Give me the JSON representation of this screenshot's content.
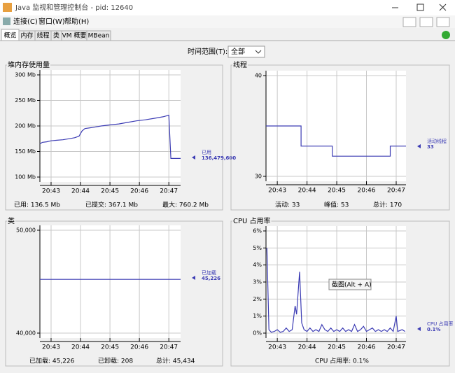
{
  "window": {
    "title": "Java 监视和管理控制台 - pid: 12640"
  },
  "menu": [
    "连接(C)",
    "窗口(W)",
    "帮助(H)"
  ],
  "tabs": [
    "概览",
    "内存",
    "线程",
    "类",
    "VM 概要",
    "MBean"
  ],
  "time_range": {
    "label": "时间范围(T):",
    "value": "全部"
  },
  "tooltip": "截图(Alt + A)",
  "chart_data": [
    {
      "type": "line",
      "title": "堆内存使用量",
      "x": [
        1242.62,
        1242.7,
        1242.85,
        1243.0,
        1243.2,
        1243.4,
        1243.6,
        1243.8,
        1243.95,
        1244.05,
        1244.15,
        1244.4,
        1244.7,
        1245.0,
        1245.3,
        1245.6,
        1245.9,
        1246.2,
        1246.5,
        1246.8,
        1247.0,
        1247.07,
        1247.4
      ],
      "series": [
        {
          "name": "已用",
          "color": "#3c3cb4",
          "legend_value": "136,479,600",
          "values": [
            165,
            168,
            169,
            171,
            172,
            173,
            175,
            177,
            180,
            190,
            195,
            197,
            200,
            202,
            204,
            207,
            210,
            212,
            215,
            218,
            221,
            136.5,
            136.5
          ]
        }
      ],
      "xlim": [
        1242.62,
        1247.4
      ],
      "xticks": [
        {
          "value": 1243,
          "label": "20:43"
        },
        {
          "value": 1244,
          "label": "20:44"
        },
        {
          "value": 1245,
          "label": "20:45"
        },
        {
          "value": 1246,
          "label": "20:46"
        },
        {
          "value": 1247,
          "label": "20:47"
        }
      ],
      "ylim": [
        100,
        300
      ],
      "yticks": [
        {
          "value": 100,
          "label": "100 Mb"
        },
        {
          "value": 150,
          "label": "150 Mb"
        },
        {
          "value": 200,
          "label": "200 Mb"
        },
        {
          "value": 250,
          "label": "250 Mb"
        },
        {
          "value": 300,
          "label": "300 Mb"
        }
      ],
      "grid": true,
      "stats": [
        "已用:  136.5  Mb",
        "已提交:  367.1  Mb",
        "最大:  760.2  Mb"
      ]
    },
    {
      "type": "line",
      "title": "线程",
      "x": [
        1242.62,
        1243.8,
        1243.8,
        1244.85,
        1244.85,
        1246.8,
        1246.8,
        1247.33
      ],
      "series": [
        {
          "name": "活动线程",
          "color": "#3c3cb4",
          "legend_value": "33",
          "values": [
            35,
            35,
            33,
            33,
            32,
            32,
            33,
            33
          ]
        }
      ],
      "xlim": [
        1242.62,
        1247.33
      ],
      "xticks": [
        {
          "value": 1243,
          "label": "20:43"
        },
        {
          "value": 1244,
          "label": "20:44"
        },
        {
          "value": 1245,
          "label": "20:45"
        },
        {
          "value": 1246,
          "label": "20:46"
        },
        {
          "value": 1247,
          "label": "20:47"
        }
      ],
      "ylim": [
        30,
        40
      ],
      "yticks": [
        30,
        40
      ],
      "grid": true,
      "stats": [
        "活动:  33",
        "峰值:  53",
        "总计:  170"
      ]
    },
    {
      "type": "line",
      "title": "类",
      "x": [
        1242.62,
        1244.0,
        1246.0,
        1247.4
      ],
      "series": [
        {
          "name": "已加载",
          "color": "#3c3cb4",
          "legend_value": "45,226",
          "values": [
            45226,
            45226,
            45226,
            45226
          ]
        }
      ],
      "xlim": [
        1242.62,
        1247.4
      ],
      "xticks": [
        {
          "value": 1243,
          "label": "20:43"
        },
        {
          "value": 1244,
          "label": "20:44"
        },
        {
          "value": 1245,
          "label": "20:45"
        },
        {
          "value": 1246,
          "label": "20:46"
        },
        {
          "value": 1247,
          "label": "20:47"
        }
      ],
      "ylim": [
        40000,
        50000
      ],
      "yticks": [
        {
          "value": 40000,
          "label": "40,000"
        },
        {
          "value": 50000,
          "label": "50,000"
        }
      ],
      "grid": true,
      "stats": [
        "已加载:  45,226",
        "已卸载:  208",
        "总计:  45,434"
      ]
    },
    {
      "type": "line",
      "title": "CPU 占用率",
      "x": [
        1242.65,
        1242.72,
        1242.8,
        1242.9,
        1243.0,
        1243.1,
        1243.2,
        1243.3,
        1243.4,
        1243.5,
        1243.6,
        1243.65,
        1243.75,
        1243.82,
        1243.9,
        1244.0,
        1244.1,
        1244.2,
        1244.3,
        1244.4,
        1244.5,
        1244.6,
        1244.7,
        1244.8,
        1244.9,
        1245.0,
        1245.1,
        1245.2,
        1245.3,
        1245.4,
        1245.5,
        1245.6,
        1245.7,
        1245.8,
        1245.9,
        1246.0,
        1246.1,
        1246.2,
        1246.3,
        1246.4,
        1246.5,
        1246.6,
        1246.7,
        1246.8,
        1246.9,
        1247.0,
        1247.05,
        1247.2,
        1247.3
      ],
      "series": [
        {
          "name": "CPU 占用率",
          "color": "#3c3cb4",
          "legend_value": "0.1%",
          "values": [
            5,
            0.2,
            0.05,
            0.1,
            0.2,
            0.05,
            0.1,
            0.3,
            0.1,
            0.2,
            1.6,
            1.1,
            3.6,
            0.6,
            0.2,
            0.1,
            0.3,
            0.1,
            0.2,
            0.1,
            0.5,
            0.2,
            0.1,
            0.3,
            0.1,
            0.2,
            0.1,
            0.3,
            0.1,
            0.2,
            0.1,
            0.5,
            0.1,
            0.2,
            0.4,
            0.1,
            0.2,
            0.3,
            0.1,
            0.2,
            0.1,
            0.2,
            0.1,
            0.3,
            0.1,
            1.0,
            0.1,
            0.2,
            0.1
          ]
        }
      ],
      "xlim": [
        1242.62,
        1247.33
      ],
      "xticks": [
        {
          "value": 1243,
          "label": "20:43"
        },
        {
          "value": 1244,
          "label": "20:44"
        },
        {
          "value": 1245,
          "label": "20:45"
        },
        {
          "value": 1246,
          "label": "20:46"
        },
        {
          "value": 1247,
          "label": "20:47"
        }
      ],
      "ylim": [
        0,
        6
      ],
      "yticks": [
        {
          "value": 0,
          "label": "0%"
        },
        {
          "value": 1,
          "label": "1%"
        },
        {
          "value": 2,
          "label": "2%"
        },
        {
          "value": 3,
          "label": "3%"
        },
        {
          "value": 4,
          "label": "4%"
        },
        {
          "value": 5,
          "label": "5%"
        },
        {
          "value": 6,
          "label": "6%"
        }
      ],
      "grid": true,
      "stats": [
        "CPU 占用率:  0.1%"
      ]
    }
  ]
}
